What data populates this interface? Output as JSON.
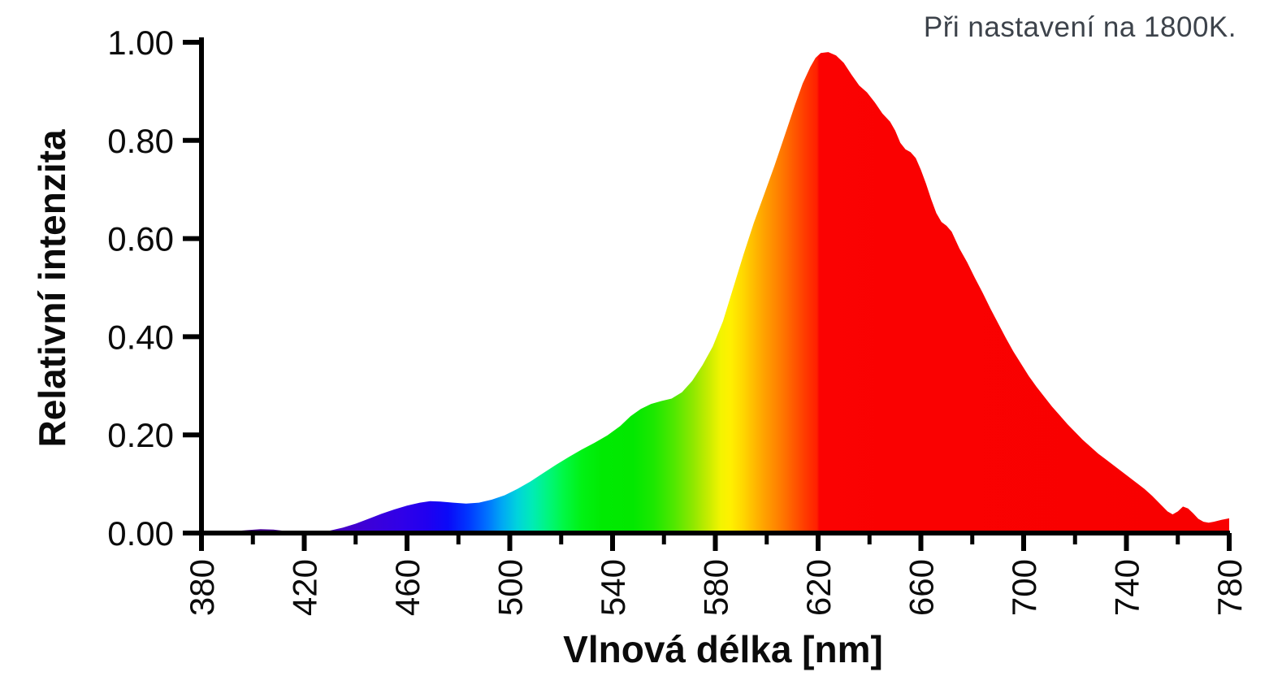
{
  "annotation": {
    "text": "Při nastavení na 1800K."
  },
  "colors": {
    "axis": "#000000",
    "tick_text": "#0b0b0b",
    "annotation_text": "#3d434b",
    "background": "#ffffff",
    "red_fill": "#fb0000"
  },
  "chart_data": {
    "type": "area",
    "title": "",
    "xlabel": "Vlnová délka [nm]",
    "ylabel": "Relativní intenzita",
    "xlim": [
      380,
      780
    ],
    "ylim": [
      0,
      1.0
    ],
    "grid": false,
    "legend": false,
    "x_major_ticks": [
      380,
      420,
      460,
      500,
      540,
      580,
      620,
      660,
      700,
      740,
      780
    ],
    "x_minor_ticks": [
      400,
      440,
      480,
      520,
      560,
      600,
      640,
      680,
      720,
      760
    ],
    "y_ticks": [
      {
        "value": 0.0,
        "label": "0.00"
      },
      {
        "value": 0.2,
        "label": "0.20"
      },
      {
        "value": 0.4,
        "label": "0.40"
      },
      {
        "value": 0.6,
        "label": "0.60"
      },
      {
        "value": 0.8,
        "label": "0.80"
      },
      {
        "value": 1.0,
        "label": "1.00"
      }
    ],
    "series": [
      {
        "points": [
          [
            380,
            0.001
          ],
          [
            388,
            0.002
          ],
          [
            393,
            0.004
          ],
          [
            398,
            0.006
          ],
          [
            403,
            0.008
          ],
          [
            408,
            0.007
          ],
          [
            413,
            0.004
          ],
          [
            418,
            0.002
          ],
          [
            424,
            0.002
          ],
          [
            430,
            0.005
          ],
          [
            435,
            0.011
          ],
          [
            440,
            0.019
          ],
          [
            445,
            0.029
          ],
          [
            450,
            0.039
          ],
          [
            455,
            0.048
          ],
          [
            460,
            0.056
          ],
          [
            465,
            0.062
          ],
          [
            469,
            0.065
          ],
          [
            473,
            0.064
          ],
          [
            478,
            0.062
          ],
          [
            483,
            0.06
          ],
          [
            488,
            0.062
          ],
          [
            493,
            0.068
          ],
          [
            498,
            0.077
          ],
          [
            503,
            0.09
          ],
          [
            508,
            0.105
          ],
          [
            513,
            0.122
          ],
          [
            518,
            0.139
          ],
          [
            523,
            0.155
          ],
          [
            528,
            0.17
          ],
          [
            533,
            0.184
          ],
          [
            538,
            0.199
          ],
          [
            543,
            0.218
          ],
          [
            547,
            0.238
          ],
          [
            551,
            0.253
          ],
          [
            555,
            0.263
          ],
          [
            559,
            0.269
          ],
          [
            563,
            0.274
          ],
          [
            567,
            0.287
          ],
          [
            571,
            0.31
          ],
          [
            575,
            0.342
          ],
          [
            579,
            0.38
          ],
          [
            583,
            0.432
          ],
          [
            587,
            0.5
          ],
          [
            591,
            0.568
          ],
          [
            595,
            0.632
          ],
          [
            599,
            0.69
          ],
          [
            603,
            0.748
          ],
          [
            607,
            0.81
          ],
          [
            611,
            0.872
          ],
          [
            614,
            0.916
          ],
          [
            617,
            0.95
          ],
          [
            619,
            0.968
          ],
          [
            621,
            0.978
          ],
          [
            624,
            0.98
          ],
          [
            627,
            0.973
          ],
          [
            630,
            0.958
          ],
          [
            633,
            0.934
          ],
          [
            636,
            0.912
          ],
          [
            639,
            0.898
          ],
          [
            642,
            0.878
          ],
          [
            645,
            0.855
          ],
          [
            648,
            0.838
          ],
          [
            650,
            0.82
          ],
          [
            652,
            0.795
          ],
          [
            654,
            0.782
          ],
          [
            656,
            0.776
          ],
          [
            658,
            0.764
          ],
          [
            660,
            0.74
          ],
          [
            662,
            0.712
          ],
          [
            664,
            0.68
          ],
          [
            666,
            0.652
          ],
          [
            668,
            0.634
          ],
          [
            670,
            0.626
          ],
          [
            672,
            0.614
          ],
          [
            675,
            0.58
          ],
          [
            678,
            0.552
          ],
          [
            681,
            0.52
          ],
          [
            684,
            0.49
          ],
          [
            687,
            0.458
          ],
          [
            690,
            0.428
          ],
          [
            693,
            0.398
          ],
          [
            696,
            0.37
          ],
          [
            699,
            0.345
          ],
          [
            702,
            0.32
          ],
          [
            705,
            0.298
          ],
          [
            708,
            0.278
          ],
          [
            711,
            0.258
          ],
          [
            714,
            0.24
          ],
          [
            717,
            0.222
          ],
          [
            720,
            0.206
          ],
          [
            723,
            0.19
          ],
          [
            726,
            0.176
          ],
          [
            729,
            0.162
          ],
          [
            732,
            0.15
          ],
          [
            735,
            0.138
          ],
          [
            738,
            0.126
          ],
          [
            741,
            0.114
          ],
          [
            744,
            0.102
          ],
          [
            747,
            0.09
          ],
          [
            750,
            0.076
          ],
          [
            753,
            0.06
          ],
          [
            756,
            0.044
          ],
          [
            758,
            0.038
          ],
          [
            760,
            0.044
          ],
          [
            762,
            0.054
          ],
          [
            764,
            0.05
          ],
          [
            766,
            0.04
          ],
          [
            768,
            0.029
          ],
          [
            770,
            0.023
          ],
          [
            772,
            0.021
          ],
          [
            774,
            0.023
          ],
          [
            777,
            0.027
          ],
          [
            780,
            0.03
          ]
        ]
      }
    ],
    "spectrum_gradient": [
      [
        380,
        "#2a0050"
      ],
      [
        400,
        "#46008c"
      ],
      [
        415,
        "#4a00a8"
      ],
      [
        430,
        "#4800c0"
      ],
      [
        445,
        "#3c00d8"
      ],
      [
        458,
        "#3000e8"
      ],
      [
        468,
        "#2000f0"
      ],
      [
        476,
        "#0a0af8"
      ],
      [
        484,
        "#0038ff"
      ],
      [
        491,
        "#0070ff"
      ],
      [
        497,
        "#00a8f4"
      ],
      [
        503,
        "#00d4dc"
      ],
      [
        509,
        "#00ecb4"
      ],
      [
        515,
        "#00f67c"
      ],
      [
        521,
        "#00f844"
      ],
      [
        528,
        "#00f214"
      ],
      [
        536,
        "#00ea02"
      ],
      [
        548,
        "#02e800"
      ],
      [
        556,
        "#1ce800"
      ],
      [
        564,
        "#50e800"
      ],
      [
        571,
        "#8ce800"
      ],
      [
        577,
        "#c4ec00"
      ],
      [
        582,
        "#f2f400"
      ],
      [
        586,
        "#fff000"
      ],
      [
        591,
        "#ffd600"
      ],
      [
        596,
        "#ffb400"
      ],
      [
        601,
        "#ff9600"
      ],
      [
        606,
        "#ff7800"
      ],
      [
        611,
        "#ff5600"
      ],
      [
        616,
        "#ff3400"
      ],
      [
        619.5,
        "#ff2000"
      ],
      [
        620.5,
        "#fb0202"
      ],
      [
        650,
        "#fa0101"
      ],
      [
        780,
        "#f80000"
      ]
    ]
  }
}
